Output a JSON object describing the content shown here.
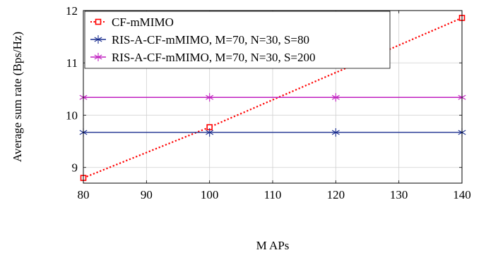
{
  "chart_data": {
    "type": "line",
    "xlabel": "M APs",
    "ylabel": "Average sum rate (Bps/Hz)",
    "xlim": [
      80,
      140
    ],
    "ylim": [
      8.7,
      12
    ],
    "xticks": [
      80,
      90,
      100,
      110,
      120,
      130,
      140
    ],
    "yticks": [
      9,
      10,
      11,
      12
    ],
    "grid": true,
    "legend_position": "top-left",
    "series": [
      {
        "name": "CF-mMIMO",
        "color": "#ff0000",
        "line_style": "dotted",
        "marker": "square",
        "x": [
          80,
          100,
          140
        ],
        "y": [
          8.8,
          9.77,
          11.86
        ]
      },
      {
        "name": "RIS-A-CF-mMIMO, M=70, N=30, S=80",
        "color": "#1a2e8f",
        "line_style": "solid",
        "marker": "asterisk",
        "x": [
          80,
          100,
          120,
          140
        ],
        "y": [
          9.67,
          9.67,
          9.67,
          9.67
        ]
      },
      {
        "name": "RIS-A-CF-mMIMO, M=70, N=30, S=200",
        "color": "#c020c0",
        "line_style": "solid",
        "marker": "asterisk",
        "x": [
          80,
          100,
          120,
          140
        ],
        "y": [
          10.34,
          10.34,
          10.34,
          10.34
        ]
      }
    ]
  }
}
